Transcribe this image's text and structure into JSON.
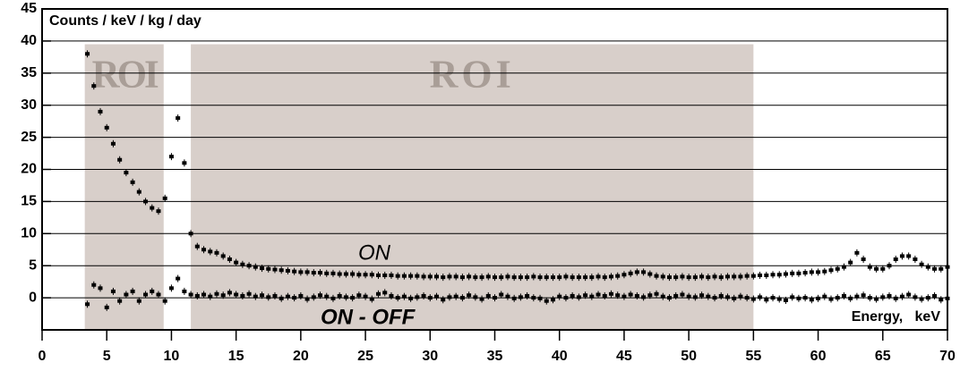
{
  "chart_data": {
    "type": "scatter",
    "ylabel": "Counts / keV / kg / day",
    "xlabel": "Energy,   keV",
    "xlim": [
      0,
      70
    ],
    "xticks": [
      0,
      5,
      10,
      15,
      20,
      25,
      30,
      35,
      40,
      45,
      50,
      55,
      60,
      65,
      70
    ],
    "ylim": [
      -5,
      45
    ],
    "yticks": [
      0,
      5,
      10,
      15,
      20,
      25,
      30,
      35,
      40,
      45
    ],
    "grid": true,
    "regions": [
      {
        "label": "ROI",
        "x": [
          3.3,
          9.4
        ],
        "top": 39.5,
        "color": "#d8cfca",
        "label_color": "#a99e97"
      },
      {
        "label": "ROI",
        "x": [
          11.5,
          55
        ],
        "top": 39.5,
        "color": "#d8cfca",
        "label_color": "#a99e97"
      }
    ],
    "x": [
      3.5,
      4,
      4.5,
      5,
      5.5,
      6,
      6.5,
      7,
      7.5,
      8,
      8.5,
      9,
      9.5,
      10,
      10.5,
      11,
      11.5,
      12,
      12.5,
      13,
      13.5,
      14,
      14.5,
      15,
      15.5,
      16,
      16.5,
      17,
      17.5,
      18,
      18.5,
      19,
      19.5,
      20,
      20.5,
      21,
      21.5,
      22,
      22.5,
      23,
      23.5,
      24,
      24.5,
      25,
      25.5,
      26,
      26.5,
      27,
      27.5,
      28,
      28.5,
      29,
      29.5,
      30,
      30.5,
      31,
      31.5,
      32,
      32.5,
      33,
      33.5,
      34,
      34.5,
      35,
      35.5,
      36,
      36.5,
      37,
      37.5,
      38,
      38.5,
      39,
      39.5,
      40,
      40.5,
      41,
      41.5,
      42,
      42.5,
      43,
      43.5,
      44,
      44.5,
      45,
      45.5,
      46,
      46.5,
      47,
      47.5,
      48,
      48.5,
      49,
      49.5,
      50,
      50.5,
      51,
      51.5,
      52,
      52.5,
      53,
      53.5,
      54,
      54.5,
      55,
      55.5,
      56,
      56.5,
      57,
      57.5,
      58,
      58.5,
      59,
      59.5,
      60,
      60.5,
      61,
      61.5,
      62,
      62.5,
      63,
      63.5,
      64,
      64.5,
      65,
      65.5,
      66,
      66.5,
      67,
      67.5,
      68,
      68.5,
      69,
      69.5,
      70
    ],
    "series": [
      {
        "name": "ON",
        "color": "#000000",
        "values": [
          38,
          33,
          29,
          26.5,
          24,
          21.5,
          19.5,
          18,
          16.5,
          15,
          14,
          13.5,
          15.5,
          22,
          28,
          21,
          10,
          8,
          7.5,
          7.2,
          7,
          6.5,
          6,
          5.5,
          5.2,
          5,
          4.8,
          4.6,
          4.5,
          4.4,
          4.3,
          4.2,
          4.1,
          4,
          4,
          3.9,
          3.9,
          3.8,
          3.8,
          3.7,
          3.7,
          3.7,
          3.6,
          3.6,
          3.6,
          3.5,
          3.5,
          3.5,
          3.4,
          3.4,
          3.4,
          3.4,
          3.3,
          3.3,
          3.3,
          3.2,
          3.3,
          3.3,
          3.2,
          3.3,
          3.2,
          3.2,
          3.3,
          3.2,
          3.2,
          3.3,
          3.2,
          3.2,
          3.2,
          3.3,
          3.2,
          3.2,
          3.2,
          3.2,
          3.3,
          3.2,
          3.2,
          3.2,
          3.2,
          3.3,
          3.2,
          3.3,
          3.4,
          3.6,
          3.8,
          4,
          4,
          3.7,
          3.4,
          3.3,
          3.2,
          3.2,
          3.3,
          3.2,
          3.2,
          3.3,
          3.2,
          3.3,
          3.2,
          3.3,
          3.3,
          3.3,
          3.4,
          3.4,
          3.5,
          3.5,
          3.6,
          3.6,
          3.7,
          3.8,
          3.8,
          3.9,
          4,
          4,
          4.1,
          4.3,
          4.5,
          4.8,
          5.5,
          7,
          6,
          4.8,
          4.5,
          4.5,
          5,
          6,
          6.5,
          6.5,
          6,
          5.2,
          4.8,
          4.5,
          4.5,
          4.8
        ]
      },
      {
        "name": "ON - OFF",
        "color": "#000000",
        "values": [
          -1,
          2,
          1.5,
          -1.5,
          1,
          -0.5,
          0.5,
          1,
          -0.5,
          0.5,
          1,
          0.5,
          -0.5,
          1.5,
          3,
          1,
          0.5,
          0.3,
          0.5,
          0.2,
          0.6,
          0.4,
          0.8,
          0.5,
          0.3,
          0.6,
          0.2,
          0.4,
          0.1,
          0.3,
          -0.1,
          0.2,
          0,
          0.3,
          -0.2,
          0.1,
          0.4,
          0.2,
          -0.1,
          0.3,
          0.1,
          0,
          0.4,
          0.2,
          -0.2,
          0.6,
          0.8,
          0.3,
          0,
          0.2,
          -0.1,
          0.1,
          0.3,
          0,
          0.2,
          -0.3,
          0.1,
          0.2,
          0,
          0.4,
          0.1,
          -0.2,
          0.3,
          0,
          0.5,
          0.2,
          -0.1,
          0.1,
          0.3,
          0,
          -0.1,
          -0.5,
          -0.3,
          0.2,
          0,
          0.3,
          0.1,
          0.4,
          0.2,
          0.5,
          0.3,
          0.6,
          0.4,
          0.2,
          0.5,
          0.3,
          0.1,
          0.4,
          0.6,
          0.2,
          0,
          0.3,
          0.5,
          0.2,
          0.1,
          0.4,
          0.2,
          0,
          0.3,
          0.1,
          -0.1,
          0.2,
          0,
          -0.2,
          0.1,
          -0.3,
          0,
          -0.2,
          -0.4,
          0.1,
          -0.1,
          0,
          -0.3,
          -0.1,
          0.2,
          -0.2,
          0,
          0.3,
          -0.1,
          0.2,
          0.4,
          0,
          -0.2,
          0.1,
          0.3,
          -0.1,
          0.2,
          0.5,
          0.1,
          -0.2,
          0,
          0.3,
          -0.3,
          -0.1
        ]
      }
    ]
  }
}
